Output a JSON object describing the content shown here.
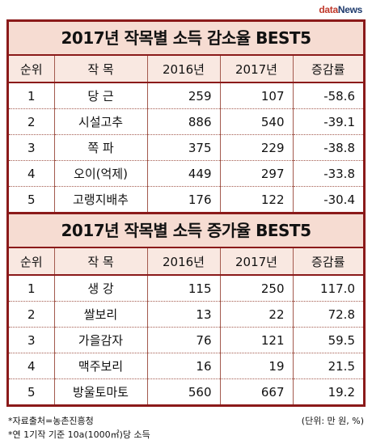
{
  "logo": {
    "part1": "data",
    "part2": "News"
  },
  "table1": {
    "title": "2017년 작목별 소득 감소율 BEST5",
    "headers": [
      "순위",
      "작 목",
      "2016년",
      "2017년",
      "증감률"
    ],
    "rows": [
      [
        "1",
        "당 근",
        "259",
        "107",
        "-58.6"
      ],
      [
        "2",
        "시설고추",
        "886",
        "540",
        "-39.1"
      ],
      [
        "3",
        "쪽 파",
        "375",
        "229",
        "-38.8"
      ],
      [
        "4",
        "오이(억제)",
        "449",
        "297",
        "-33.8"
      ],
      [
        "5",
        "고랭지배추",
        "176",
        "122",
        "-30.4"
      ]
    ]
  },
  "table2": {
    "title": "2017년 작목별 소득 증가율 BEST5",
    "headers": [
      "순위",
      "작 목",
      "2016년",
      "2017년",
      "증감률"
    ],
    "rows": [
      [
        "1",
        "생 강",
        "115",
        "250",
        "117.0"
      ],
      [
        "2",
        "쌀보리",
        "13",
        "22",
        "72.8"
      ],
      [
        "3",
        "가을감자",
        "76",
        "121",
        "59.5"
      ],
      [
        "4",
        "맥주보리",
        "16",
        "19",
        "21.5"
      ],
      [
        "5",
        "방울토마토",
        "560",
        "667",
        "19.2"
      ]
    ]
  },
  "footer": {
    "source": "*자료출처=농촌진흥청",
    "note": "*연 1기작 기준 10a(1000㎡)당 소득",
    "unit": "(단위: 만 원, %)"
  }
}
